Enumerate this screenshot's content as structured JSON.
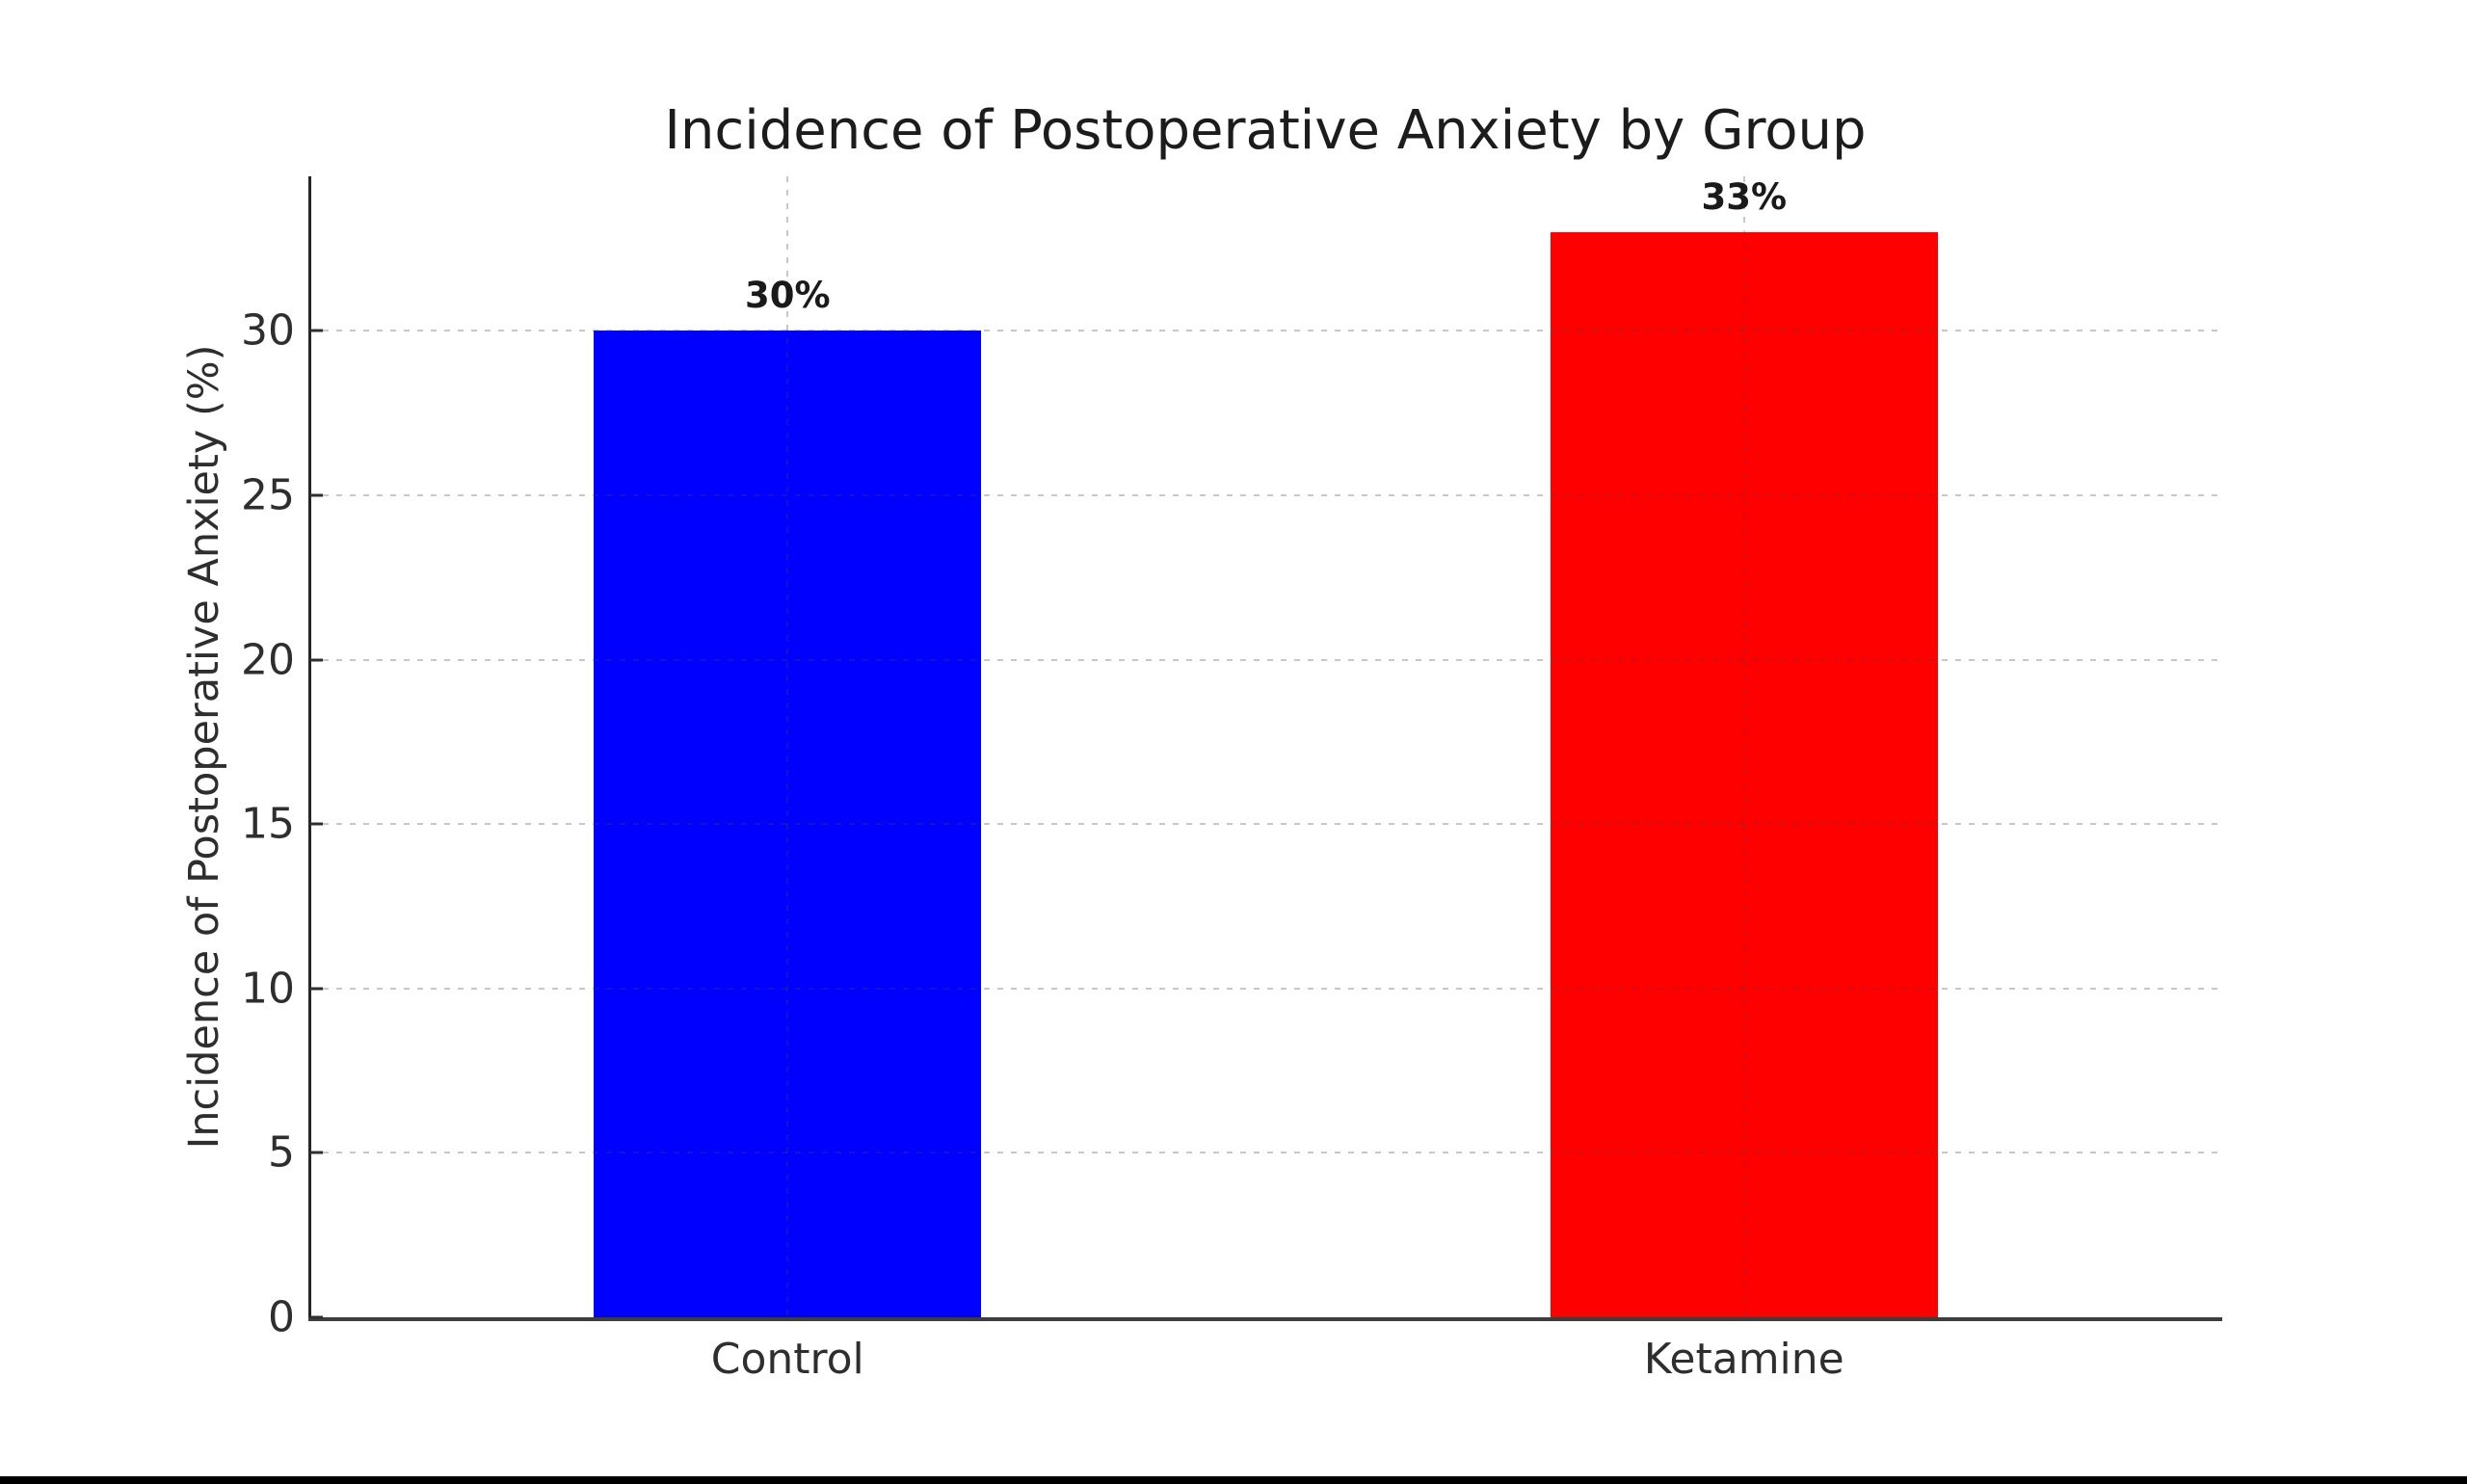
{
  "page": {
    "background_color": "#ffffff",
    "bottom_bar_color": "#000000"
  },
  "chart_data": {
    "type": "bar",
    "title": "Incidence of Postoperative Anxiety by Group",
    "xlabel": "",
    "ylabel": "Incidence of Postoperative Anxiety (%)",
    "categories": [
      "Control",
      "Ketamine"
    ],
    "values": [
      30,
      33
    ],
    "value_labels": [
      "30%",
      "33%"
    ],
    "bar_colors": [
      "#0000ff",
      "#ff0000"
    ],
    "yticks": [
      0,
      5,
      10,
      15,
      20,
      25,
      30
    ],
    "ylim": [
      0,
      34.7
    ],
    "grid": {
      "horizontal": "dashed light gray at each y tick",
      "vertical": "dashed light gray at each bar center",
      "style": "dashed"
    },
    "legend": "none",
    "spines": "left and bottom only"
  }
}
